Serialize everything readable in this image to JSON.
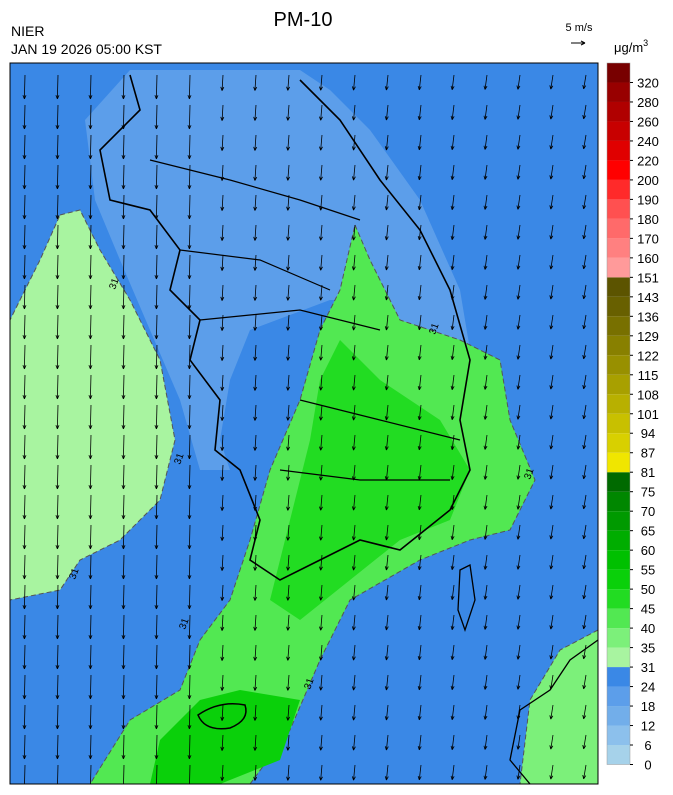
{
  "header": {
    "title": "PM-10",
    "agency": "NIER",
    "timestamp": "JAN 19 2026 05:00 KST",
    "wind_scale": "5 m/s"
  },
  "colorbar": {
    "unit": "μg/m",
    "unit_exponent": "3",
    "levels": [
      0,
      6,
      12,
      18,
      24,
      31,
      35,
      40,
      45,
      50,
      55,
      60,
      65,
      70,
      75,
      81,
      87,
      94,
      101,
      108,
      115,
      122,
      129,
      136,
      143,
      151,
      160,
      170,
      180,
      190,
      200,
      220,
      240,
      260,
      280,
      320
    ],
    "colors": [
      "#a6d2ea",
      "#8cc0ec",
      "#72aeea",
      "#5c9eea",
      "#3a88e6",
      "#a8f4a0",
      "#7cf07a",
      "#52e852",
      "#22dc22",
      "#0ad00a",
      "#00c000",
      "#00ad00",
      "#009a00",
      "#008700",
      "#006a00",
      "#f0e600",
      "#d8d000",
      "#c8c000",
      "#b8b000",
      "#a8a000",
      "#989000",
      "#888000",
      "#787000",
      "#686000",
      "#5c5400",
      "#ff9a9a",
      "#ff8080",
      "#ff6a6a",
      "#ff5050",
      "#ff2a2a",
      "#ff0000",
      "#e00000",
      "#c80000",
      "#b00000",
      "#980000",
      "#780000"
    ]
  },
  "map": {
    "contour_label": "31"
  }
}
